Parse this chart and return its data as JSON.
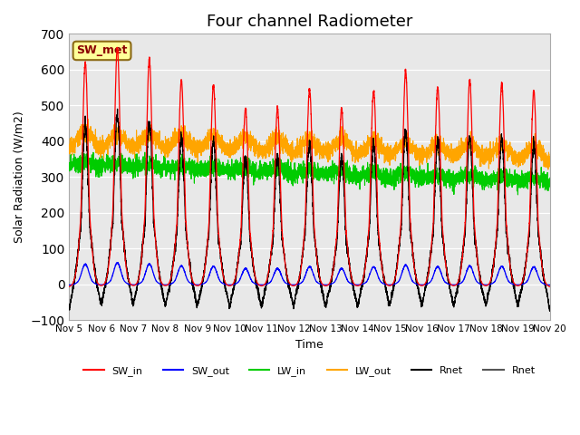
{
  "title": "Four channel Radiometer",
  "xlabel": "Time",
  "ylabel": "Solar Radiation (W/m2)",
  "annotation": "SW_met",
  "ylim": [
    -100,
    700
  ],
  "yticks": [
    -100,
    0,
    100,
    200,
    300,
    400,
    500,
    600,
    700
  ],
  "xtick_labels": [
    "Nov 5",
    "Nov 6",
    "Nov 7",
    "Nov 8",
    "Nov 9",
    "Nov 10",
    "Nov 11",
    "Nov 12",
    "Nov 13",
    "Nov 14",
    "Nov 15",
    "Nov 16",
    "Nov 17",
    "Nov 18",
    "Nov 19",
    "Nov 20"
  ],
  "n_days": 15,
  "colors": {
    "SW_in": "#ff0000",
    "SW_out": "#0000ff",
    "LW_in": "#00cc00",
    "LW_out": "#ffa500",
    "Rnet1": "#000000",
    "Rnet2": "#555555"
  },
  "background_color": "#e8e8e8",
  "title_fontsize": 13,
  "annotation_bg": "#ffff99",
  "annotation_fg": "#8b0000"
}
